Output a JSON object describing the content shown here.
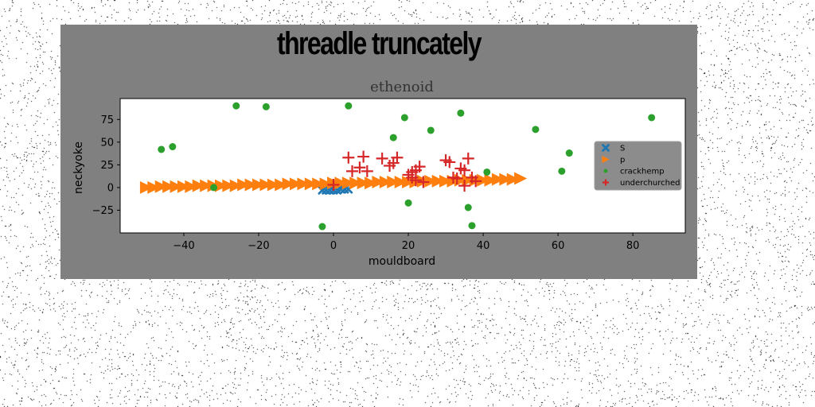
{
  "figure_title": "threadle truncately",
  "chart_data": {
    "type": "scatter",
    "title": "ethenoid",
    "xlabel": "mouldboard",
    "ylabel": "neckyoke",
    "xlim": [
      -57,
      94
    ],
    "ylim": [
      -50,
      98
    ],
    "xticks": [
      -40,
      -20,
      0,
      20,
      40,
      60,
      80
    ],
    "yticks": [
      -25,
      0,
      25,
      50,
      75
    ],
    "grid": false,
    "legend_position": "right",
    "background_color": "#808080",
    "plot_background": "#ffffff",
    "series": [
      {
        "name": "S",
        "marker": "x",
        "color": "#1f77b4",
        "points": [
          [
            -3,
            -3
          ],
          [
            -2,
            -3
          ],
          [
            -1,
            -3
          ],
          [
            0,
            -3
          ],
          [
            1,
            -3
          ],
          [
            2,
            -2
          ],
          [
            3,
            -2
          ],
          [
            4,
            -2
          ]
        ]
      },
      {
        "name": "p",
        "marker": "triangle-right",
        "color": "#ff7f0e",
        "points": [
          [
            -50,
            0
          ],
          [
            -48,
            0
          ],
          [
            -46,
            1
          ],
          [
            -44,
            1
          ],
          [
            -42,
            1
          ],
          [
            -40,
            1
          ],
          [
            -38,
            1
          ],
          [
            -36,
            2
          ],
          [
            -34,
            2
          ],
          [
            -32,
            2
          ],
          [
            -30,
            2
          ],
          [
            -28,
            2
          ],
          [
            -26,
            2
          ],
          [
            -24,
            3
          ],
          [
            -22,
            3
          ],
          [
            -20,
            3
          ],
          [
            -18,
            3
          ],
          [
            -16,
            3
          ],
          [
            -14,
            3
          ],
          [
            -12,
            4
          ],
          [
            -10,
            4
          ],
          [
            -8,
            4
          ],
          [
            -6,
            4
          ],
          [
            -4,
            4
          ],
          [
            -2,
            4
          ],
          [
            0,
            5
          ],
          [
            2,
            5
          ],
          [
            4,
            5
          ],
          [
            6,
            5
          ],
          [
            8,
            5
          ],
          [
            10,
            5
          ],
          [
            12,
            6
          ],
          [
            14,
            6
          ],
          [
            16,
            6
          ],
          [
            18,
            6
          ],
          [
            20,
            6
          ],
          [
            22,
            6
          ],
          [
            24,
            7
          ],
          [
            26,
            7
          ],
          [
            28,
            7
          ],
          [
            30,
            7
          ],
          [
            32,
            7
          ],
          [
            34,
            8
          ],
          [
            36,
            8
          ],
          [
            38,
            8
          ],
          [
            40,
            8
          ],
          [
            42,
            8
          ],
          [
            44,
            9
          ],
          [
            46,
            9
          ],
          [
            48,
            9
          ],
          [
            50,
            10
          ]
        ]
      },
      {
        "name": "crackhemp",
        "marker": "circle",
        "color": "#2ca02c",
        "points": [
          [
            -46,
            42
          ],
          [
            -43,
            45
          ],
          [
            -32,
            0
          ],
          [
            -26,
            90
          ],
          [
            -18,
            89
          ],
          [
            -3,
            -43
          ],
          [
            4,
            90
          ],
          [
            16,
            55
          ],
          [
            19,
            77
          ],
          [
            20,
            -17
          ],
          [
            26,
            63
          ],
          [
            34,
            82
          ],
          [
            36,
            -22
          ],
          [
            37,
            -42
          ],
          [
            41,
            17
          ],
          [
            54,
            64
          ],
          [
            61,
            18
          ],
          [
            63,
            38
          ],
          [
            85,
            77
          ],
          [
            87,
            15
          ]
        ]
      },
      {
        "name": "underchurched",
        "marker": "plus",
        "color": "#d62728",
        "points": [
          [
            0,
            3
          ],
          [
            4,
            33
          ],
          [
            5,
            18
          ],
          [
            7,
            22
          ],
          [
            8,
            34
          ],
          [
            9,
            18
          ],
          [
            13,
            32
          ],
          [
            15,
            24
          ],
          [
            16,
            27
          ],
          [
            17,
            33
          ],
          [
            20,
            14
          ],
          [
            21,
            11
          ],
          [
            21,
            17
          ],
          [
            22,
            8
          ],
          [
            22,
            19
          ],
          [
            23,
            23
          ],
          [
            24,
            6
          ],
          [
            30,
            30
          ],
          [
            31,
            28
          ],
          [
            32,
            11
          ],
          [
            33,
            10
          ],
          [
            34,
            21
          ],
          [
            35,
            19
          ],
          [
            35,
            2
          ],
          [
            36,
            32
          ],
          [
            37,
            11
          ],
          [
            38,
            7
          ]
        ]
      }
    ]
  }
}
